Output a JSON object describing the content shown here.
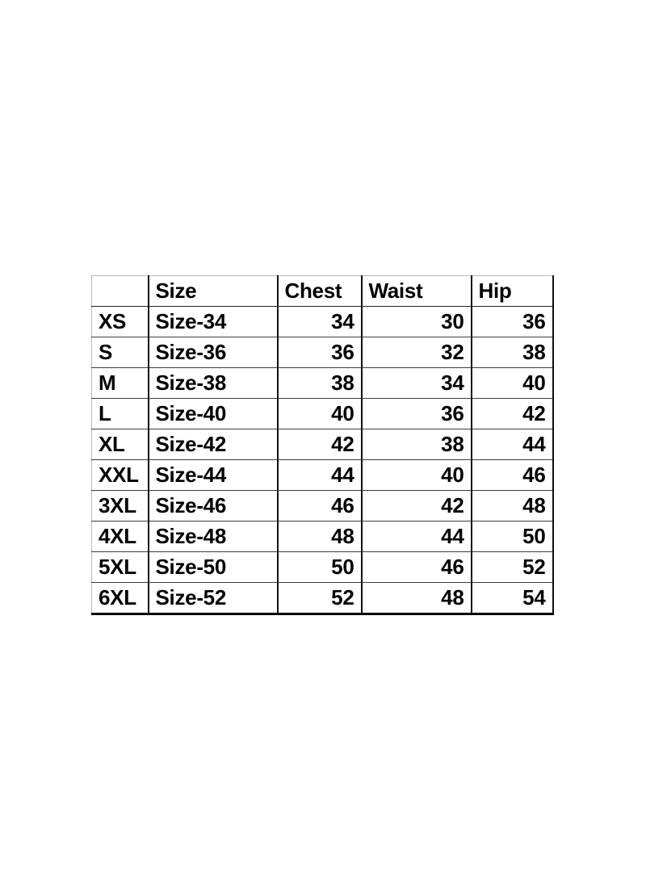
{
  "colors": {
    "background": "#ffffff",
    "text": "#000000",
    "border_inner": "#000000",
    "border_outer_light": "#b9b9b9"
  },
  "chart_data": {
    "type": "table",
    "title": "",
    "columns": [
      "",
      "Size",
      "Chest",
      "Waist",
      "Hip"
    ],
    "rows": [
      [
        "XS",
        "Size-34",
        34,
        30,
        36
      ],
      [
        "S",
        "Size-36",
        36,
        32,
        38
      ],
      [
        "M",
        "Size-38",
        38,
        34,
        40
      ],
      [
        "L",
        "Size-40",
        40,
        36,
        42
      ],
      [
        "XL",
        "Size-42",
        42,
        38,
        44
      ],
      [
        "XXL",
        "Size-44",
        44,
        40,
        46
      ],
      [
        "3XL",
        "Size-46",
        46,
        42,
        48
      ],
      [
        "4XL",
        "Size-48",
        48,
        44,
        50
      ],
      [
        "5XL",
        "Size-50",
        50,
        46,
        52
      ],
      [
        "6XL",
        "Size-52",
        52,
        48,
        54
      ]
    ],
    "layout_hints": {
      "header_align": "left",
      "label_align": "left",
      "number_align": "right",
      "grid": "on"
    }
  }
}
